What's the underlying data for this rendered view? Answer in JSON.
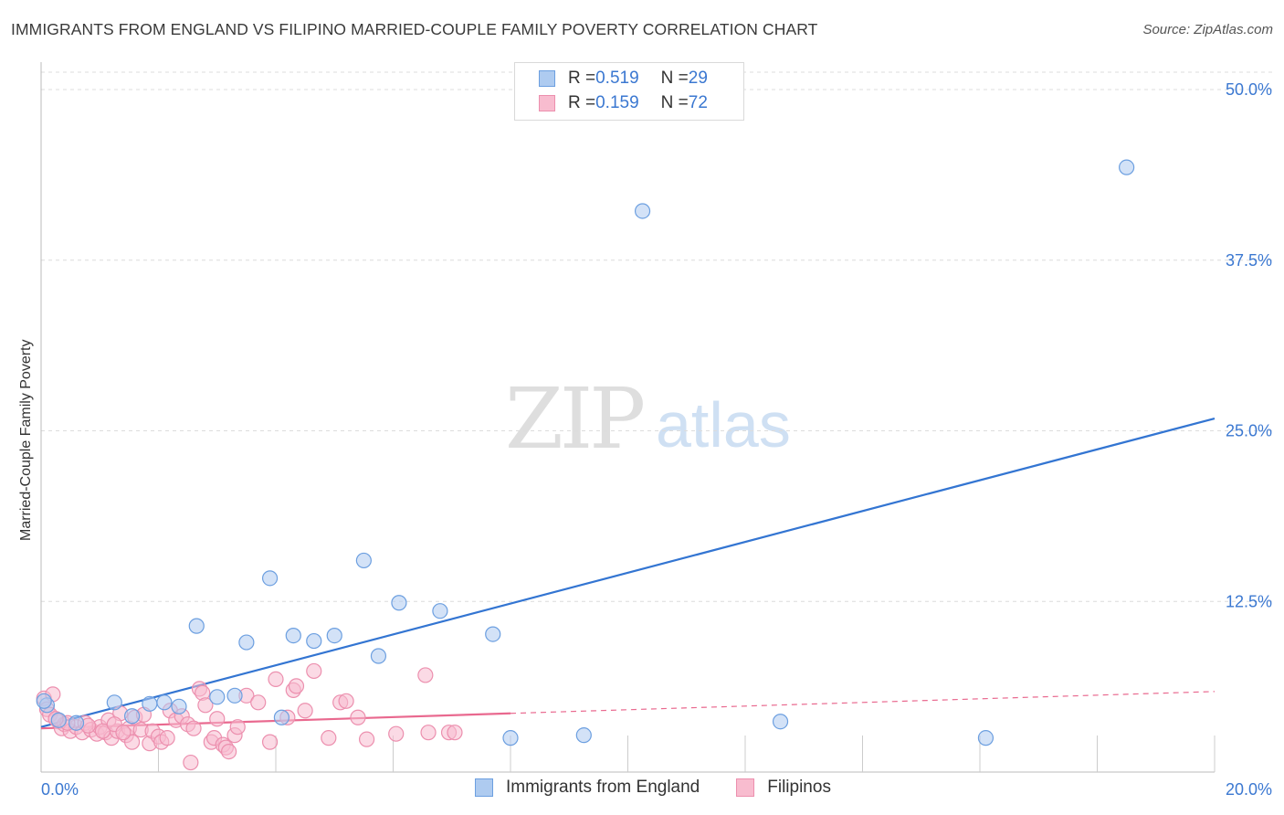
{
  "header": {
    "title": "IMMIGRANTS FROM ENGLAND VS FILIPINO MARRIED-COUPLE FAMILY POVERTY CORRELATION CHART",
    "source": "Source: ZipAtlas.com"
  },
  "watermark": {
    "zip": "ZIP",
    "atlas": "atlas"
  },
  "legend_top": {
    "rows": [
      {
        "r_label": "R = ",
        "r_value": "0.519",
        "n_label": "N = ",
        "n_value": "29",
        "color": "#aecbf0"
      },
      {
        "r_label": "R = ",
        "r_value": "0.159",
        "n_label": "N = ",
        "n_value": "72",
        "color": "#f8bccf"
      }
    ]
  },
  "legend_bottom": {
    "items": [
      {
        "label": "Immigrants from England",
        "color": "#aecbf0"
      },
      {
        "label": "Filipinos",
        "color": "#f8bccf"
      }
    ]
  },
  "colors": {
    "blue_fill": "#aecbf0",
    "blue_stroke": "#6c9fe0",
    "blue_line": "#3375d2",
    "pink_fill": "#f8bccf",
    "pink_stroke": "#ec8fae",
    "pink_line": "#e9698f",
    "grid": "#dcdcdc",
    "tick_text": "#3b78d1"
  },
  "chart_data": {
    "type": "scatter",
    "title": "IMMIGRANTS FROM ENGLAND VS FILIPINO MARRIED-COUPLE FAMILY POVERTY CORRELATION CHART",
    "xlabel": "",
    "ylabel": "Married-Couple Family Poverty",
    "xlim": [
      0,
      20
    ],
    "ylim": [
      0,
      50
    ],
    "x_tick_labels": [
      "0.0%",
      "20.0%"
    ],
    "y_ticks": [
      12.5,
      25.0,
      37.5,
      50.0
    ],
    "y_tick_labels": [
      "12.5%",
      "25.0%",
      "37.5%",
      "50.0%"
    ],
    "grid": true,
    "series": [
      {
        "name": "Immigrants from England",
        "R": 0.519,
        "N": 29,
        "trend": {
          "x": [
            0,
            20
          ],
          "y": [
            3.3,
            25.9
          ]
        },
        "points": [
          {
            "x": 0.1,
            "y": 4.9
          },
          {
            "x": 0.3,
            "y": 3.8
          },
          {
            "x": 0.6,
            "y": 3.6
          },
          {
            "x": 1.25,
            "y": 5.1
          },
          {
            "x": 1.55,
            "y": 4.1
          },
          {
            "x": 1.85,
            "y": 5.0
          },
          {
            "x": 2.1,
            "y": 5.1
          },
          {
            "x": 2.35,
            "y": 4.8
          },
          {
            "x": 2.65,
            "y": 10.7
          },
          {
            "x": 3.0,
            "y": 5.5
          },
          {
            "x": 3.3,
            "y": 5.6
          },
          {
            "x": 3.5,
            "y": 9.5
          },
          {
            "x": 3.9,
            "y": 14.2
          },
          {
            "x": 4.1,
            "y": 4.0
          },
          {
            "x": 4.3,
            "y": 10.0
          },
          {
            "x": 4.65,
            "y": 9.6
          },
          {
            "x": 5.0,
            "y": 10.0
          },
          {
            "x": 5.5,
            "y": 15.5
          },
          {
            "x": 5.75,
            "y": 8.5
          },
          {
            "x": 6.1,
            "y": 12.4
          },
          {
            "x": 6.8,
            "y": 11.8
          },
          {
            "x": 7.7,
            "y": 10.1
          },
          {
            "x": 8.0,
            "y": 2.5
          },
          {
            "x": 9.25,
            "y": 2.7
          },
          {
            "x": 10.25,
            "y": 41.1
          },
          {
            "x": 12.6,
            "y": 3.7
          },
          {
            "x": 16.1,
            "y": 2.5
          },
          {
            "x": 18.5,
            "y": 44.3
          },
          {
            "x": 0.05,
            "y": 5.2
          }
        ]
      },
      {
        "name": "Filipinos",
        "R": 0.159,
        "N": 72,
        "trend": {
          "x": [
            0,
            8
          ],
          "y": [
            3.2,
            4.3
          ]
        },
        "trend_dashed": {
          "x": [
            8,
            20
          ],
          "y": [
            4.3,
            5.9
          ]
        },
        "points": [
          {
            "x": 0.05,
            "y": 5.4
          },
          {
            "x": 0.1,
            "y": 4.6
          },
          {
            "x": 0.15,
            "y": 4.2
          },
          {
            "x": 0.2,
            "y": 5.7
          },
          {
            "x": 0.3,
            "y": 3.7
          },
          {
            "x": 0.35,
            "y": 3.2
          },
          {
            "x": 0.4,
            "y": 3.5
          },
          {
            "x": 0.5,
            "y": 3.0
          },
          {
            "x": 0.6,
            "y": 3.3
          },
          {
            "x": 0.7,
            "y": 2.9
          },
          {
            "x": 0.75,
            "y": 3.6
          },
          {
            "x": 0.85,
            "y": 3.1
          },
          {
            "x": 0.95,
            "y": 2.8
          },
          {
            "x": 1.0,
            "y": 3.3
          },
          {
            "x": 1.1,
            "y": 2.9
          },
          {
            "x": 1.15,
            "y": 3.8
          },
          {
            "x": 1.2,
            "y": 2.5
          },
          {
            "x": 1.3,
            "y": 3.0
          },
          {
            "x": 1.35,
            "y": 4.3
          },
          {
            "x": 1.45,
            "y": 2.7
          },
          {
            "x": 1.5,
            "y": 3.2
          },
          {
            "x": 1.55,
            "y": 2.2
          },
          {
            "x": 1.6,
            "y": 4.0
          },
          {
            "x": 1.7,
            "y": 3.1
          },
          {
            "x": 1.75,
            "y": 4.2
          },
          {
            "x": 1.85,
            "y": 2.1
          },
          {
            "x": 1.9,
            "y": 3.0
          },
          {
            "x": 2.0,
            "y": 2.6
          },
          {
            "x": 2.05,
            "y": 2.2
          },
          {
            "x": 2.15,
            "y": 2.5
          },
          {
            "x": 2.2,
            "y": 4.5
          },
          {
            "x": 2.3,
            "y": 3.8
          },
          {
            "x": 2.4,
            "y": 4.1
          },
          {
            "x": 2.5,
            "y": 3.5
          },
          {
            "x": 2.55,
            "y": 0.7
          },
          {
            "x": 2.6,
            "y": 3.2
          },
          {
            "x": 2.7,
            "y": 6.1
          },
          {
            "x": 2.75,
            "y": 5.8
          },
          {
            "x": 2.8,
            "y": 4.9
          },
          {
            "x": 2.9,
            "y": 2.2
          },
          {
            "x": 2.95,
            "y": 2.5
          },
          {
            "x": 3.0,
            "y": 3.9
          },
          {
            "x": 3.1,
            "y": 2.0
          },
          {
            "x": 3.15,
            "y": 1.8
          },
          {
            "x": 3.2,
            "y": 1.5
          },
          {
            "x": 3.3,
            "y": 2.7
          },
          {
            "x": 3.35,
            "y": 3.3
          },
          {
            "x": 3.5,
            "y": 5.6
          },
          {
            "x": 3.7,
            "y": 5.1
          },
          {
            "x": 3.9,
            "y": 2.2
          },
          {
            "x": 4.0,
            "y": 6.8
          },
          {
            "x": 4.2,
            "y": 4.0
          },
          {
            "x": 4.3,
            "y": 6.0
          },
          {
            "x": 4.35,
            "y": 6.3
          },
          {
            "x": 4.5,
            "y": 4.5
          },
          {
            "x": 4.65,
            "y": 7.4
          },
          {
            "x": 4.9,
            "y": 2.5
          },
          {
            "x": 5.1,
            "y": 5.1
          },
          {
            "x": 5.2,
            "y": 5.2
          },
          {
            "x": 5.4,
            "y": 4.0
          },
          {
            "x": 5.55,
            "y": 2.4
          },
          {
            "x": 6.05,
            "y": 2.8
          },
          {
            "x": 6.55,
            "y": 7.1
          },
          {
            "x": 6.6,
            "y": 2.9
          },
          {
            "x": 6.95,
            "y": 2.9
          },
          {
            "x": 7.05,
            "y": 2.9
          },
          {
            "x": 0.45,
            "y": 3.6
          },
          {
            "x": 0.8,
            "y": 3.4
          },
          {
            "x": 1.05,
            "y": 3.0
          },
          {
            "x": 1.25,
            "y": 3.5
          },
          {
            "x": 1.4,
            "y": 2.9
          },
          {
            "x": 0.25,
            "y": 3.9
          }
        ]
      }
    ]
  }
}
